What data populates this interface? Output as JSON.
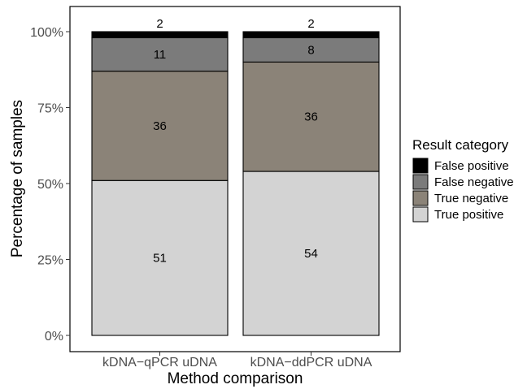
{
  "chart_data": {
    "type": "bar",
    "stacked": true,
    "categories": [
      "kDNA−qPCR uDNA",
      "kDNA−ddPCR uDNA"
    ],
    "series": [
      {
        "name": "True positive",
        "values": [
          51,
          54
        ],
        "color": "#d3d3d3"
      },
      {
        "name": "True negative",
        "values": [
          36,
          36
        ],
        "color": "#8b8378"
      },
      {
        "name": "False negative",
        "values": [
          11,
          8
        ],
        "color": "#7b7b7b"
      },
      {
        "name": "False positive",
        "values": [
          2,
          2
        ],
        "color": "#000000"
      }
    ],
    "xlabel": "Method comparison",
    "ylabel": "Percentage of samples",
    "ylim": [
      0,
      100
    ],
    "yticks": [
      "0%",
      "25%",
      "50%",
      "75%",
      "100%"
    ],
    "grid": false,
    "legend": {
      "title": "Result category",
      "placement": "right",
      "entries": [
        "False positive",
        "False negative",
        "True negative",
        "True positive"
      ]
    }
  }
}
